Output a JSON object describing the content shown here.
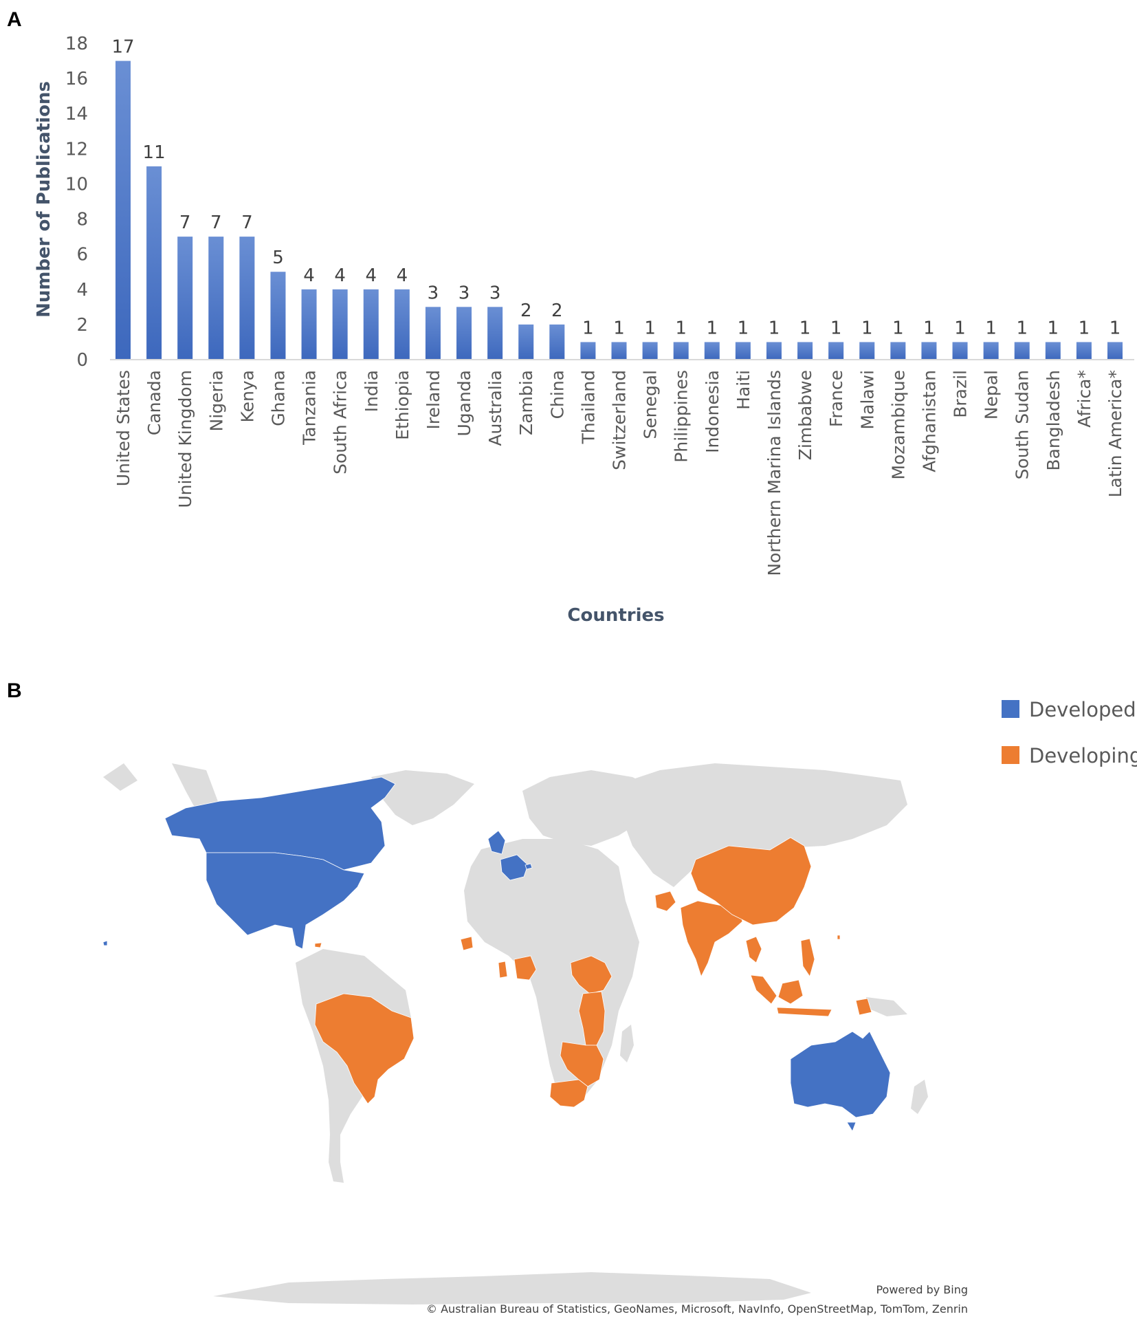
{
  "panel_a_label": "A",
  "panel_b_label": "B",
  "chart_data": [
    {
      "type": "bar",
      "xlabel": "Countries",
      "ylabel": "Number of Publications",
      "ylim": [
        0,
        18
      ],
      "yticks": [
        0,
        2,
        4,
        6,
        8,
        10,
        12,
        14,
        16,
        18
      ],
      "grid": false,
      "categories": [
        "United States",
        "Canada",
        "United Kingdom",
        "Nigeria",
        "Kenya",
        "Ghana",
        "Tanzania",
        "South Africa",
        "India",
        "Ethiopia",
        "Ireland",
        "Uganda",
        "Australia",
        "Zambia",
        "China",
        "Thailand",
        "Switzerland",
        "Senegal",
        "Philippines",
        "Indonesia",
        "Haiti",
        "Northern Marina Islands",
        "Zimbabwe",
        "France",
        "Malawi",
        "Mozambique",
        "Afghanistan",
        "Brazil",
        "Nepal",
        "South Sudan",
        "Bangladesh",
        "Africa*",
        "Latin America*"
      ],
      "values": [
        17,
        11,
        7,
        7,
        7,
        5,
        4,
        4,
        4,
        4,
        3,
        3,
        3,
        2,
        2,
        1,
        1,
        1,
        1,
        1,
        1,
        1,
        1,
        1,
        1,
        1,
        1,
        1,
        1,
        1,
        1,
        1,
        1
      ],
      "bar_color": "#4472c4"
    }
  ],
  "map": {
    "legend": [
      {
        "label": "Developed",
        "color": "#4472c4"
      },
      {
        "label": "Developing",
        "color": "#ed7d31"
      }
    ],
    "land_color": "#dddddd",
    "powered_by": "Powered by Bing",
    "attribution": "© Australian Bureau of Statistics, GeoNames, Microsoft, NavInfo, OpenStreetMap, TomTom, Zenrin"
  }
}
